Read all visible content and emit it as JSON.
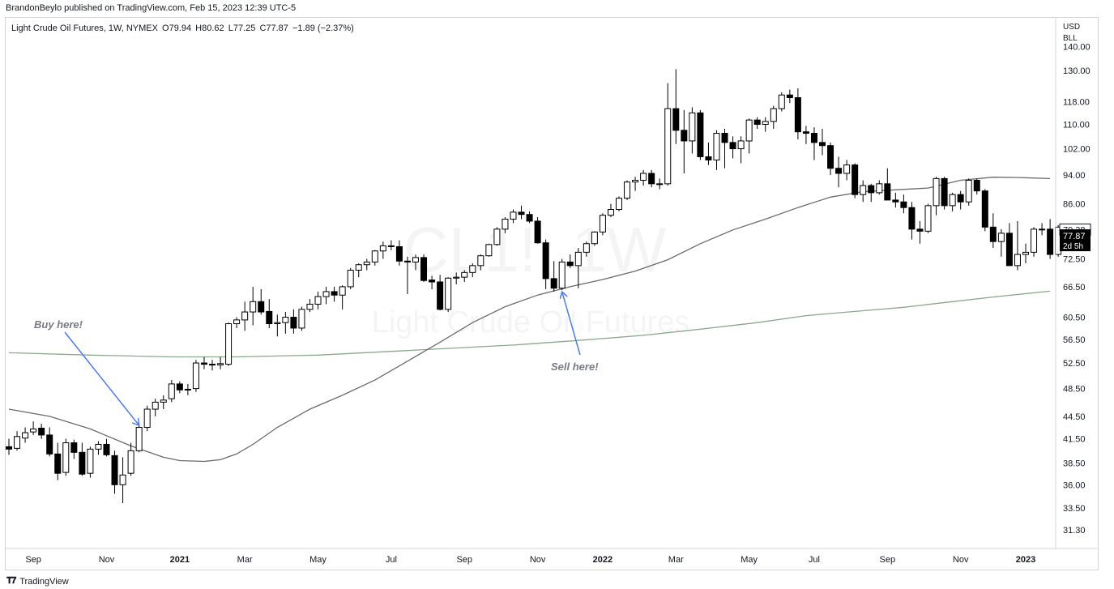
{
  "header": {
    "publisher": "BrandonBeylo published on TradingView.com, Feb 15, 2023 12:39 UTC-5"
  },
  "legend": {
    "symbol": "Light Crude Oil Futures, 1W, NYMEX",
    "open": "O79.94",
    "high": "H80.62",
    "low": "L77.25",
    "close": "C77.87",
    "change": "−1.89 (−2.37%)"
  },
  "currency": {
    "line1": "USD",
    "line2": "BLL"
  },
  "watermark": {
    "symbol": "CL1!, 1W",
    "name": "Light Crude Oil Futures"
  },
  "price_tags": {
    "last": "79.38",
    "current": "77.87",
    "countdown": "2d 5h"
  },
  "annotations": {
    "buy": "Buy here!",
    "sell": "Sell here!"
  },
  "footer": {
    "brand": "TradingView"
  },
  "colors": {
    "up_candle": "#ffffff",
    "down_candle": "#000000",
    "ma_short": "#6b6b6b",
    "ma_long": "#8aa88a",
    "arrow": "#4a7bf5"
  },
  "chart_data": {
    "type": "candlestick",
    "title": "Light Crude Oil Futures, 1W, NYMEX",
    "y_axis_ticks": [
      "140.00",
      "130.00",
      "118.00",
      "110.00",
      "102.00",
      "94.00",
      "86.00",
      "79.38",
      "72.50",
      "66.50",
      "60.50",
      "56.50",
      "52.50",
      "48.50",
      "44.50",
      "41.50",
      "38.50",
      "36.00",
      "33.50",
      "31.30"
    ],
    "y_axis_scale": "log",
    "ylim": [
      29.5,
      140
    ],
    "x_axis_labels": [
      {
        "label": "Sep",
        "week": 3
      },
      {
        "label": "Nov",
        "week": 12
      },
      {
        "label": "2021",
        "week": 21
      },
      {
        "label": "Mar",
        "week": 29
      },
      {
        "label": "May",
        "week": 38
      },
      {
        "label": "Jul",
        "week": 47
      },
      {
        "label": "Sep",
        "week": 56
      },
      {
        "label": "Nov",
        "week": 65
      },
      {
        "label": "2022",
        "week": 73
      },
      {
        "label": "Mar",
        "week": 82
      },
      {
        "label": "May",
        "week": 91
      },
      {
        "label": "Jul",
        "week": 99
      },
      {
        "label": "Sep",
        "week": 108
      },
      {
        "label": "Nov",
        "week": 117
      },
      {
        "label": "2023",
        "week": 125
      }
    ],
    "bold_x_labels": [
      "2021",
      "2022",
      "2023"
    ],
    "candles_ohlc": [
      [
        40.5,
        41.5,
        39.5,
        40.2
      ],
      [
        40.3,
        42.5,
        40.0,
        41.8
      ],
      [
        41.6,
        43.0,
        41.0,
        42.3
      ],
      [
        42.4,
        43.8,
        42.0,
        42.8
      ],
      [
        42.9,
        43.5,
        41.5,
        42.0
      ],
      [
        42.0,
        43.0,
        39.3,
        39.6
      ],
      [
        39.6,
        41.0,
        36.5,
        37.3
      ],
      [
        37.4,
        41.5,
        37.0,
        41.0
      ],
      [
        41.0,
        41.4,
        39.0,
        39.8
      ],
      [
        39.8,
        41.0,
        37.0,
        37.2
      ],
      [
        37.3,
        40.5,
        36.8,
        40.2
      ],
      [
        40.2,
        41.2,
        39.5,
        40.8
      ],
      [
        40.8,
        41.5,
        39.3,
        39.5
      ],
      [
        39.4,
        40.0,
        35.0,
        36.0
      ],
      [
        36.0,
        39.2,
        34.0,
        37.1
      ],
      [
        37.3,
        41.0,
        37.0,
        40.0
      ],
      [
        40.0,
        43.5,
        39.8,
        43.0
      ],
      [
        43.0,
        46.0,
        42.5,
        45.5
      ],
      [
        45.5,
        47.0,
        44.5,
        46.5
      ],
      [
        46.5,
        47.5,
        45.5,
        46.8
      ],
      [
        47.0,
        49.8,
        46.5,
        49.2
      ],
      [
        49.2,
        49.6,
        47.8,
        48.3
      ],
      [
        48.4,
        49.2,
        47.5,
        48.4
      ],
      [
        48.5,
        53.0,
        48.0,
        52.5
      ],
      [
        52.5,
        53.5,
        51.5,
        52.3
      ],
      [
        52.3,
        53.0,
        51.3,
        52.2
      ],
      [
        52.2,
        53.5,
        51.5,
        52.4
      ],
      [
        52.3,
        59.5,
        52.0,
        59.3
      ],
      [
        59.3,
        60.5,
        58.5,
        60.0
      ],
      [
        60.0,
        63.5,
        58.0,
        61.5
      ],
      [
        61.5,
        66.5,
        59.0,
        63.5
      ],
      [
        63.5,
        66.0,
        61.0,
        61.5
      ],
      [
        61.6,
        64.0,
        58.5,
        59.3
      ],
      [
        59.3,
        61.0,
        57.0,
        59.5
      ],
      [
        59.5,
        61.5,
        57.5,
        60.5
      ],
      [
        60.5,
        62.0,
        57.5,
        58.5
      ],
      [
        58.5,
        62.5,
        58.0,
        62.0
      ],
      [
        62.0,
        64.0,
        61.5,
        63.0
      ],
      [
        63.0,
        65.5,
        62.0,
        64.5
      ],
      [
        64.5,
        66.5,
        63.0,
        65.5
      ],
      [
        65.5,
        66.5,
        63.5,
        64.8
      ],
      [
        64.8,
        66.8,
        62.0,
        66.5
      ],
      [
        66.5,
        70.5,
        66.0,
        70.0
      ],
      [
        70.0,
        71.5,
        68.5,
        71.2
      ],
      [
        71.2,
        72.5,
        70.0,
        71.8
      ],
      [
        71.8,
        74.5,
        71.0,
        74.3
      ],
      [
        74.3,
        76.5,
        72.5,
        75.5
      ],
      [
        75.5,
        76.8,
        74.5,
        75.3
      ],
      [
        75.3,
        76.8,
        71.0,
        72.0
      ],
      [
        72.0,
        73.0,
        65.0,
        71.8
      ],
      [
        71.8,
        73.5,
        70.0,
        72.8
      ],
      [
        72.8,
        73.5,
        67.5,
        67.8
      ],
      [
        67.9,
        68.8,
        66.0,
        67.5
      ],
      [
        67.5,
        69.0,
        61.8,
        62.0
      ],
      [
        62.0,
        68.5,
        61.5,
        68.3
      ],
      [
        68.3,
        69.5,
        67.0,
        68.5
      ],
      [
        68.5,
        70.0,
        67.5,
        69.5
      ],
      [
        69.5,
        71.5,
        68.5,
        71.0
      ],
      [
        71.0,
        73.5,
        70.0,
        73.2
      ],
      [
        73.2,
        76.0,
        73.0,
        75.8
      ],
      [
        75.8,
        80.0,
        75.5,
        79.5
      ],
      [
        79.5,
        82.5,
        78.5,
        82.0
      ],
      [
        82.0,
        84.5,
        81.0,
        83.8
      ],
      [
        83.8,
        85.5,
        82.0,
        83.2
      ],
      [
        83.2,
        84.0,
        81.0,
        81.5
      ],
      [
        81.5,
        82.5,
        76.0,
        76.2
      ],
      [
        76.2,
        77.0,
        66.0,
        68.2
      ],
      [
        68.2,
        72.0,
        65.5,
        66.2
      ],
      [
        66.2,
        72.5,
        65.8,
        71.8
      ],
      [
        71.8,
        73.5,
        70.5,
        71.0
      ],
      [
        71.0,
        75.0,
        66.2,
        74.0
      ],
      [
        74.0,
        76.5,
        73.0,
        76.0
      ],
      [
        76.0,
        79.0,
        75.5,
        78.8
      ],
      [
        78.8,
        83.5,
        78.0,
        83.0
      ],
      [
        83.0,
        86.0,
        82.5,
        84.5
      ],
      [
        84.5,
        88.0,
        84.0,
        87.5
      ],
      [
        87.5,
        92.5,
        87.0,
        92.0
      ],
      [
        92.0,
        93.5,
        89.5,
        92.5
      ],
      [
        92.5,
        95.5,
        91.0,
        94.5
      ],
      [
        94.5,
        95.5,
        90.5,
        91.5
      ],
      [
        91.5,
        93.0,
        90.0,
        91.5
      ],
      [
        91.5,
        125.0,
        91.0,
        115.5
      ],
      [
        115.5,
        130.5,
        103.5,
        108.0
      ],
      [
        108.0,
        115.0,
        94.5,
        104.5
      ],
      [
        104.5,
        116.0,
        100.5,
        114.0
      ],
      [
        114.0,
        115.0,
        98.5,
        99.5
      ],
      [
        99.5,
        104.0,
        97.0,
        98.5
      ],
      [
        98.5,
        108.0,
        95.5,
        107.0
      ],
      [
        107.0,
        108.5,
        96.0,
        104.0
      ],
      [
        104.0,
        106.0,
        99.0,
        102.0
      ],
      [
        102.0,
        106.0,
        97.5,
        104.5
      ],
      [
        104.5,
        112.0,
        100.5,
        111.5
      ],
      [
        111.5,
        112.5,
        108.5,
        110.0
      ],
      [
        110.0,
        112.5,
        107.5,
        111.0
      ],
      [
        111.0,
        116.5,
        108.5,
        115.5
      ],
      [
        115.5,
        121.5,
        114.5,
        120.5
      ],
      [
        120.5,
        122.5,
        117.5,
        119.5
      ],
      [
        119.5,
        123.0,
        105.0,
        107.5
      ],
      [
        107.5,
        109.5,
        103.5,
        107.0
      ],
      [
        107.0,
        109.0,
        98.5,
        104.0
      ],
      [
        104.0,
        108.5,
        100.0,
        103.0
      ],
      [
        103.0,
        104.0,
        94.0,
        96.0
      ],
      [
        96.0,
        99.5,
        90.5,
        94.5
      ],
      [
        94.5,
        98.5,
        92.5,
        97.0
      ],
      [
        97.0,
        97.5,
        87.5,
        88.5
      ],
      [
        88.5,
        92.5,
        86.5,
        91.0
      ],
      [
        91.0,
        91.5,
        86.5,
        89.0
      ],
      [
        89.0,
        92.5,
        88.5,
        91.5
      ],
      [
        91.5,
        96.0,
        89.0,
        87.0
      ],
      [
        87.0,
        89.0,
        85.0,
        86.5
      ],
      [
        86.5,
        88.5,
        83.5,
        85.0
      ],
      [
        85.0,
        86.5,
        77.0,
        79.5
      ],
      [
        79.5,
        81.5,
        76.0,
        79.0
      ],
      [
        79.0,
        86.0,
        78.5,
        85.5
      ],
      [
        85.5,
        93.5,
        83.0,
        93.0
      ],
      [
        93.0,
        93.5,
        84.5,
        85.5
      ],
      [
        85.5,
        89.0,
        84.0,
        88.5
      ],
      [
        88.5,
        89.5,
        84.5,
        86.5
      ],
      [
        86.5,
        93.0,
        85.5,
        92.5
      ],
      [
        92.5,
        93.0,
        88.5,
        89.5
      ],
      [
        89.5,
        90.0,
        79.0,
        80.0
      ],
      [
        80.0,
        83.5,
        75.0,
        76.5
      ],
      [
        76.5,
        79.5,
        73.0,
        78.5
      ],
      [
        78.5,
        81.0,
        72.0,
        71.0
      ],
      [
        71.0,
        81.5,
        70.0,
        73.5
      ],
      [
        73.5,
        76.0,
        71.5,
        74.0
      ],
      [
        74.0,
        80.0,
        73.0,
        79.5
      ],
      [
        79.5,
        81.0,
        78.0,
        79.5
      ],
      [
        79.5,
        82.0,
        72.5,
        73.5
      ],
      [
        73.5,
        80.5,
        73.0,
        80.0
      ],
      [
        79.94,
        80.62,
        77.25,
        77.87
      ]
    ],
    "ma_short": [
      [
        0,
        45.5
      ],
      [
        5,
        44.5
      ],
      [
        10,
        42.8
      ],
      [
        15,
        40.6
      ],
      [
        19,
        39.2
      ],
      [
        21,
        38.8
      ],
      [
        24,
        38.7
      ],
      [
        26,
        38.9
      ],
      [
        28,
        39.6
      ],
      [
        30,
        40.8
      ],
      [
        33,
        43.0
      ],
      [
        37,
        45.5
      ],
      [
        41,
        47.5
      ],
      [
        45,
        49.8
      ],
      [
        49,
        52.8
      ],
      [
        53,
        56.0
      ],
      [
        57,
        59.5
      ],
      [
        61,
        62.5
      ],
      [
        65,
        64.8
      ],
      [
        69,
        66.5
      ],
      [
        73,
        68.0
      ],
      [
        77,
        69.8
      ],
      [
        81,
        72.3
      ],
      [
        85,
        76.0
      ],
      [
        89,
        79.3
      ],
      [
        93,
        82.0
      ],
      [
        97,
        85.0
      ],
      [
        101,
        87.8
      ],
      [
        105,
        89.3
      ],
      [
        109,
        89.8
      ],
      [
        113,
        90.3
      ],
      [
        117,
        92.5
      ],
      [
        121,
        93.4
      ],
      [
        124,
        93.3
      ],
      [
        128,
        93.0
      ]
    ],
    "ma_long": [
      [
        0,
        54.2
      ],
      [
        10,
        53.8
      ],
      [
        20,
        53.5
      ],
      [
        28,
        53.5
      ],
      [
        38,
        53.8
      ],
      [
        48,
        54.5
      ],
      [
        55,
        55.0
      ],
      [
        62,
        55.5
      ],
      [
        70,
        56.3
      ],
      [
        78,
        57.2
      ],
      [
        85,
        58.3
      ],
      [
        92,
        59.5
      ],
      [
        98,
        60.8
      ],
      [
        104,
        61.6
      ],
      [
        110,
        62.4
      ],
      [
        116,
        63.5
      ],
      [
        122,
        64.6
      ],
      [
        128,
        65.6
      ]
    ],
    "ma_short_label": "",
    "ma_long_label": "",
    "buy_signal_week": 16,
    "sell_signal_week": 68
  }
}
